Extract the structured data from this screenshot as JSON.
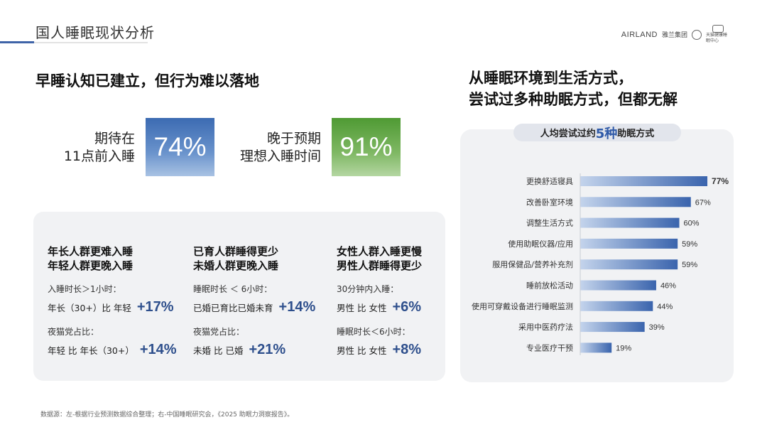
{
  "header": {
    "title": "国人睡眠现状分析",
    "brand_name": "AIRLAND",
    "brand_cn": "雅兰集团",
    "brand_sub": "天猫健康睡眠中心"
  },
  "left": {
    "headline": "早睡认知已建立，但行为难以落地",
    "stats": [
      {
        "label_line1": "期待在",
        "label_line2": "11点前入睡",
        "value": "74%",
        "color": "#4a76b8"
      },
      {
        "label_line1": "晚于预期",
        "label_line2": "理想入睡时间",
        "value": "91%",
        "color": "#5fa23f"
      }
    ],
    "columns": [
      {
        "title_line1": "年长人群更难入睡",
        "title_line2": "年轻人群更晚入睡",
        "items": [
          {
            "label": "入睡时长＞1小时：",
            "compare": "年长（30+）比 年轻",
            "value": "+17%"
          },
          {
            "label": "夜猫党占比：",
            "compare": "年轻 比 年长（30+）",
            "value": "+14%"
          }
        ]
      },
      {
        "title_line1": "已育人群睡得更少",
        "title_line2": "未婚人群更晚入睡",
        "items": [
          {
            "label": "睡眠时长 ＜ 6小时：",
            "compare": "已婚已育比已婚未育",
            "value": "+14%"
          },
          {
            "label": "夜猫党占比：",
            "compare": "未婚 比 已婚",
            "value": "+21%"
          }
        ]
      },
      {
        "title_line1": "女性人群入睡更慢",
        "title_line2": "男性人群睡得更少",
        "items": [
          {
            "label": "30分钟内入睡：",
            "compare": "男性 比 女性",
            "value": "+6%"
          },
          {
            "label": "睡眠时长＜6小时：",
            "compare": "男性 比 女性",
            "value": "+8%"
          }
        ]
      }
    ]
  },
  "right": {
    "headline_line1": "从睡眠环境到生活方式，",
    "headline_line2": "尝试过多种助眠方式，但都无解",
    "pill_prefix": "人均尝试过约",
    "pill_highlight": "5种",
    "pill_suffix": "助眠方式"
  },
  "chart_data": {
    "type": "bar",
    "orientation": "horizontal",
    "title": "人均尝试过约5种助眠方式",
    "categories": [
      "更换舒适寝具",
      "改善卧室环境",
      "调整生活方式",
      "使用助眠仪器/应用",
      "服用保健品/营养补充剂",
      "睡前放松活动",
      "使用可穿戴设备进行睡眠监测",
      "采用中医药疗法",
      "专业医疗干预"
    ],
    "values": [
      77,
      67,
      60,
      59,
      59,
      46,
      44,
      39,
      19
    ],
    "value_labels": [
      "77%",
      "67%",
      "60%",
      "59%",
      "59%",
      "46%",
      "44%",
      "39%",
      "19%"
    ],
    "unit": "%",
    "bar_color": "#3a64ad",
    "grid": false
  },
  "footer": {
    "source": "数据源：左-根据行业预测数据综合整理；右-中国睡眠研究会，《2025 助眠力洞察报告》。"
  }
}
